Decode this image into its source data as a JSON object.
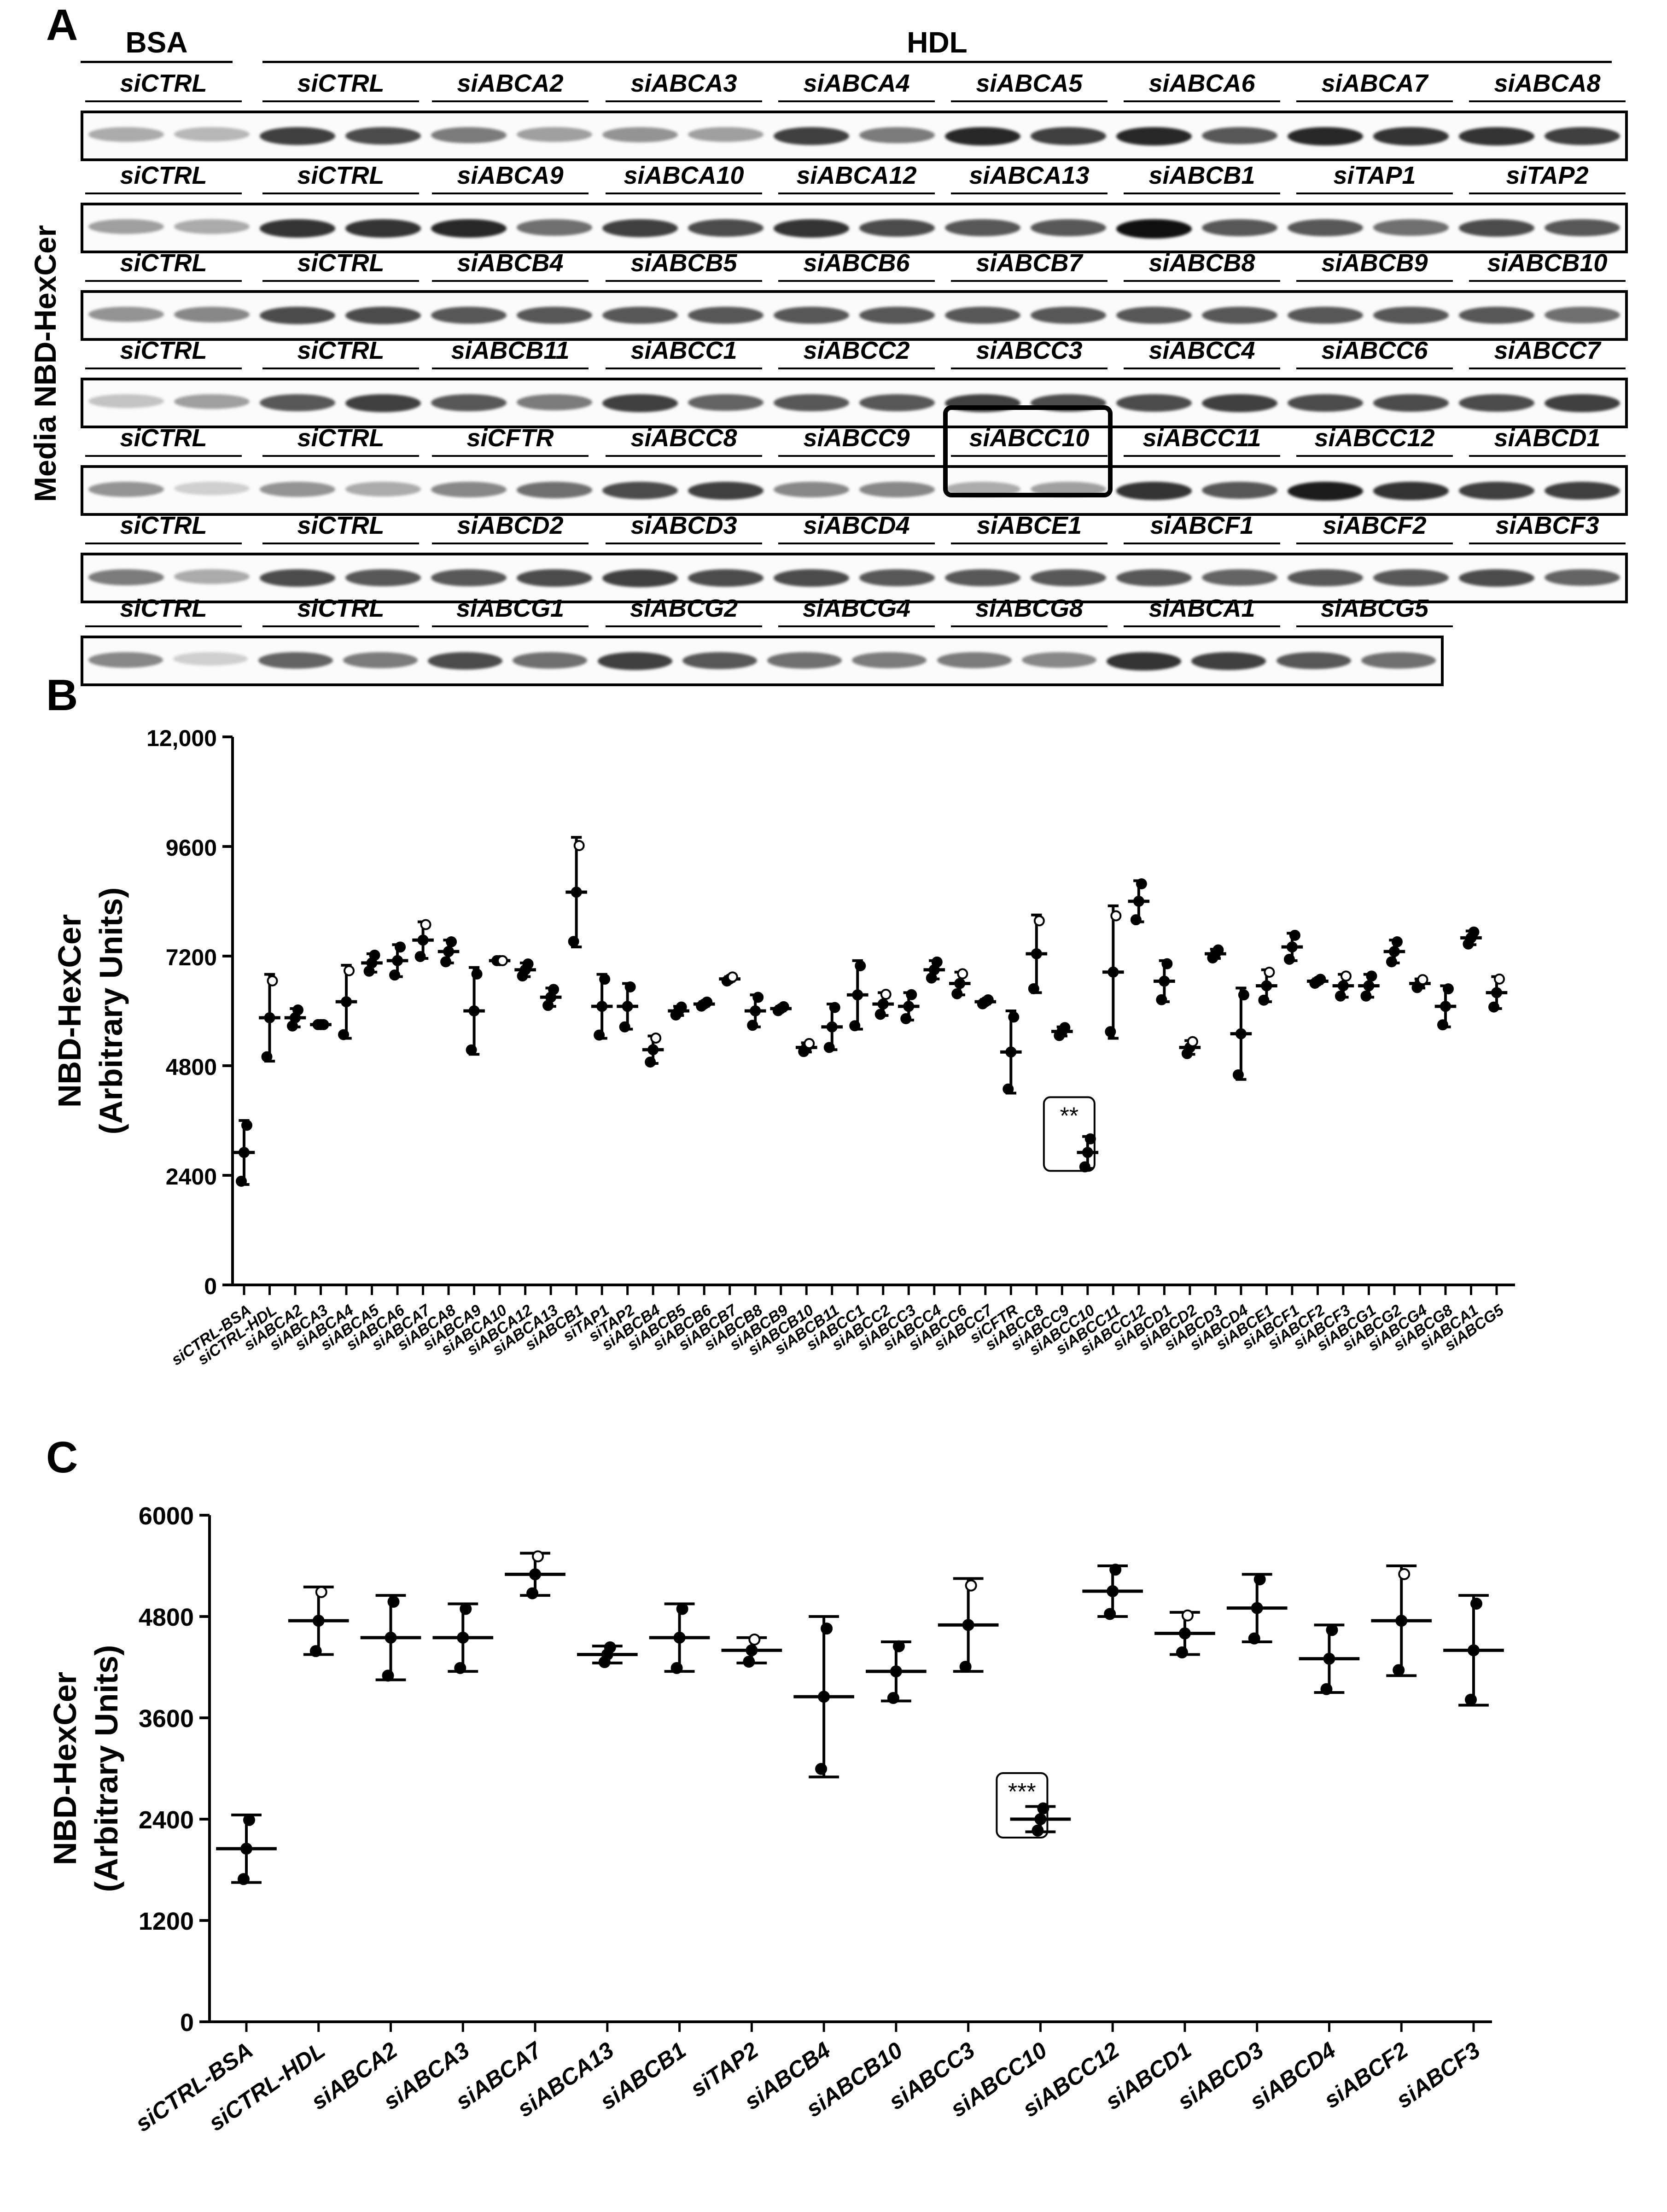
{
  "panels": {
    "a": "A",
    "b": "B",
    "c": "C"
  },
  "blot": {
    "side_label": "Media NBD-HexCer",
    "bsa_header": "BSA",
    "hdl_header": "HDL",
    "rows": [
      {
        "labels": [
          "siCTRL",
          "siCTRL",
          "siABCA2",
          "siABCA3",
          "siABCA4",
          "siABCA5",
          "siABCA6",
          "siABCA7",
          "siABCA8"
        ]
      },
      {
        "labels": [
          "siCTRL",
          "siCTRL",
          "siABCA9",
          "siABCA10",
          "siABCA12",
          "siABCA13",
          "siABCB1",
          "siTAP1",
          "siTAP2"
        ]
      },
      {
        "labels": [
          "siCTRL",
          "siCTRL",
          "siABCB4",
          "siABCB5",
          "siABCB6",
          "siABCB7",
          "siABCB8",
          "siABCB9",
          "siABCB10"
        ]
      },
      {
        "labels": [
          "siCTRL",
          "siCTRL",
          "siABCB11",
          "siABCC1",
          "siABCC2",
          "siABCC3",
          "siABCC4",
          "siABCC6",
          "siABCC7"
        ]
      },
      {
        "labels": [
          "siCTRL",
          "siCTRL",
          "siCFTR",
          "siABCC8",
          "siABCC9",
          "siABCC10",
          "siABCC11",
          "siABCC12",
          "siABCD1"
        ]
      },
      {
        "labels": [
          "siCTRL",
          "siCTRL",
          "siABCD2",
          "siABCD3",
          "siABCD4",
          "siABCE1",
          "siABCF1",
          "siABCF2",
          "siABCF3"
        ]
      },
      {
        "labels": [
          "siCTRL",
          "siCTRL",
          "siABCG1",
          "siABCG2",
          "siABCG4",
          "siABCG8",
          "siABCA1",
          "siABCG5"
        ]
      }
    ],
    "band_intensity": [
      [
        0.35,
        0.3,
        0.8,
        0.75,
        0.55,
        0.4,
        0.45,
        0.4,
        0.8,
        0.55,
        0.9,
        0.8,
        0.9,
        0.7,
        0.9,
        0.85,
        0.85,
        0.8
      ],
      [
        0.4,
        0.35,
        0.85,
        0.85,
        0.9,
        0.6,
        0.8,
        0.75,
        0.85,
        0.75,
        0.7,
        0.7,
        1.0,
        0.7,
        0.7,
        0.6,
        0.75,
        0.7
      ],
      [
        0.45,
        0.5,
        0.75,
        0.75,
        0.7,
        0.7,
        0.7,
        0.7,
        0.7,
        0.7,
        0.7,
        0.7,
        0.7,
        0.7,
        0.7,
        0.7,
        0.7,
        0.6
      ],
      [
        0.25,
        0.4,
        0.7,
        0.8,
        0.7,
        0.55,
        0.8,
        0.65,
        0.7,
        0.7,
        0.8,
        0.75,
        0.75,
        0.8,
        0.75,
        0.75,
        0.75,
        0.8
      ],
      [
        0.45,
        0.2,
        0.45,
        0.35,
        0.5,
        0.6,
        0.75,
        0.8,
        0.5,
        0.5,
        0.35,
        0.4,
        0.85,
        0.7,
        0.95,
        0.85,
        0.8,
        0.8
      ],
      [
        0.55,
        0.35,
        0.75,
        0.7,
        0.7,
        0.75,
        0.8,
        0.75,
        0.75,
        0.7,
        0.7,
        0.7,
        0.7,
        0.65,
        0.7,
        0.7,
        0.75,
        0.65
      ],
      [
        0.5,
        0.2,
        0.65,
        0.55,
        0.75,
        0.6,
        0.8,
        0.7,
        0.6,
        0.55,
        0.55,
        0.5,
        0.85,
        0.8,
        0.7,
        0.6
      ]
    ],
    "highlight_label": "siABCC10"
  },
  "chart_data": [
    {
      "type": "scatter",
      "title": "",
      "ylabel": "NBD-HexCer",
      "ylabel2": "(Arbitrary Units)",
      "xlabel": "",
      "ylim": [
        0,
        12000
      ],
      "yticks": [
        0,
        2400,
        4800,
        7200,
        9600,
        12000
      ],
      "ytick_labels": [
        "0",
        "2400",
        "4800",
        "7200",
        "9600",
        "12,000"
      ],
      "categories": [
        "siCTRL-BSA",
        "siCTRL-HDL",
        "siABCA2",
        "siABCA3",
        "siABCA4",
        "siABCA5",
        "siABCA6",
        "siABCA7",
        "siABCA8",
        "siABCA9",
        "siABCA10",
        "siABCA12",
        "siABCA13",
        "siABCB1",
        "siTAP1",
        "siTAP2",
        "siABCB4",
        "siABCB5",
        "siABCB6",
        "siABCB7",
        "siABCB8",
        "siABCB9",
        "siABCB10",
        "siABCB11",
        "siABCC1",
        "siABCC2",
        "siABCC3",
        "siABCC4",
        "siABCC6",
        "siABCC7",
        "siCFTR",
        "siABCC8",
        "siABCC9",
        "siABCC10",
        "siABCC11",
        "siABCC12",
        "siABCD1",
        "siABCD2",
        "siABCD3",
        "siABCD4",
        "siABCE1",
        "siABCF1",
        "siABCF2",
        "siABCF3",
        "siABCG1",
        "siABCG2",
        "siABCG4",
        "siABCG8",
        "siABCA1",
        "siABCG5"
      ],
      "series": [
        {
          "name": "mean",
          "values": [
            2900,
            5850,
            5850,
            5700,
            6200,
            7050,
            7100,
            7550,
            7300,
            6000,
            7100,
            6900,
            6300,
            8600,
            6100,
            6100,
            5150,
            6000,
            6150,
            6700,
            6000,
            6050,
            5200,
            5650,
            6350,
            6150,
            6100,
            6900,
            6600,
            6200,
            5100,
            7250,
            5550,
            2900,
            6850,
            8400,
            6650,
            5200,
            7250,
            5500,
            6550,
            7400,
            6650,
            6550,
            6550,
            7300,
            6600,
            6100,
            7600,
            6400
          ]
        },
        {
          "name": "sd",
          "values": [
            700,
            950,
            200,
            0,
            800,
            200,
            350,
            400,
            250,
            950,
            0,
            150,
            200,
            1200,
            700,
            500,
            300,
            100,
            50,
            50,
            350,
            50,
            100,
            500,
            750,
            250,
            300,
            200,
            250,
            50,
            900,
            850,
            100,
            350,
            1450,
            450,
            450,
            150,
            100,
            1000,
            350,
            300,
            50,
            250,
            250,
            250,
            100,
            450,
            150,
            350
          ]
        }
      ],
      "annotations": [
        {
          "category": "siABCC10",
          "text": "**"
        }
      ]
    },
    {
      "type": "scatter",
      "title": "",
      "ylabel": "NBD-HexCer",
      "ylabel2": "(Arbitrary Units)",
      "xlabel": "",
      "ylim": [
        0,
        6000
      ],
      "yticks": [
        0,
        1200,
        2400,
        3600,
        4800,
        6000
      ],
      "ytick_labels": [
        "0",
        "1200",
        "2400",
        "3600",
        "4800",
        "6000"
      ],
      "categories": [
        "siCTRL-BSA",
        "siCTRL-HDL",
        "siABCA2",
        "siABCA3",
        "siABCA7",
        "siABCA13",
        "siABCB1",
        "siTAP2",
        "siABCB4",
        "siABCB10",
        "siABCC3",
        "siABCC10",
        "siABCC12",
        "siABCD1",
        "siABCD3",
        "siABCD4",
        "siABCF2",
        "siABCF3"
      ],
      "series": [
        {
          "name": "mean",
          "values": [
            2050,
            4750,
            4550,
            4550,
            5300,
            4350,
            4550,
            4400,
            3850,
            4150,
            4700,
            2400,
            5100,
            4600,
            4900,
            4300,
            4750,
            4400
          ]
        },
        {
          "name": "sd",
          "values": [
            400,
            400,
            500,
            400,
            250,
            100,
            400,
            150,
            950,
            350,
            550,
            150,
            300,
            250,
            400,
            400,
            650,
            650
          ]
        }
      ],
      "annotations": [
        {
          "category": "siABCC10",
          "text": "***"
        }
      ]
    }
  ]
}
